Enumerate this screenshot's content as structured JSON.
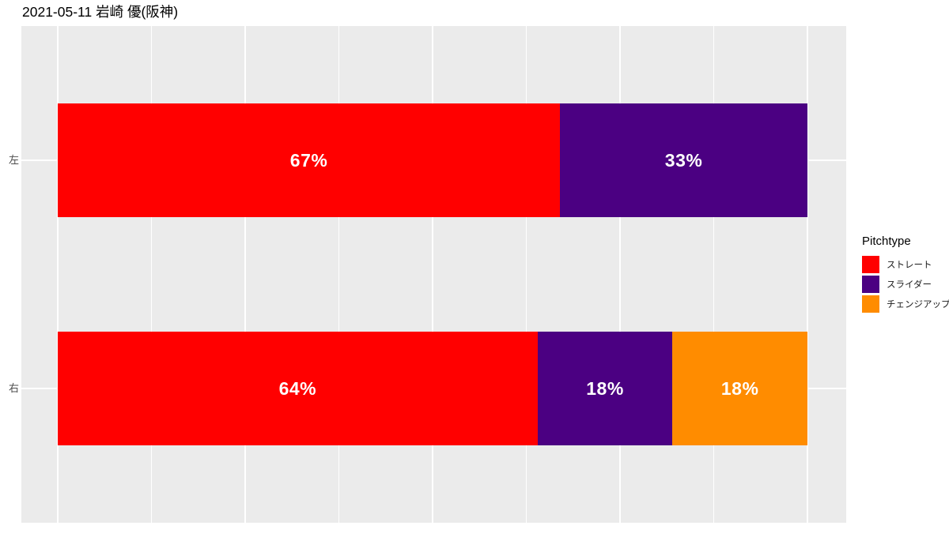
{
  "chart_data": {
    "type": "bar",
    "orientation": "horizontal",
    "stacked": true,
    "title": "2021-05-11 岩崎 優(阪神)",
    "categories": [
      "左",
      "右"
    ],
    "series": [
      {
        "name": "ストレート",
        "color": "#FF0000",
        "values": [
          67,
          64
        ]
      },
      {
        "name": "スライダー",
        "color": "#4B0082",
        "values": [
          33,
          18
        ]
      },
      {
        "name": "チェンジアップ",
        "color": "#FF8C00",
        "values": [
          0,
          18
        ]
      }
    ],
    "value_labels": [
      [
        "67%",
        "33%",
        ""
      ],
      [
        "64%",
        "18%",
        "18%"
      ]
    ],
    "legend_title": "Pitchtype",
    "legend_position": "right",
    "xlim": [
      0,
      100
    ],
    "x_axis_tick_labels_visible": false,
    "grid": true,
    "major_grid_percents": [
      0,
      25,
      50,
      75,
      100
    ],
    "minor_grid_percents": [
      12.5,
      37.5,
      62.5,
      87.5
    ],
    "panel_bg": "#EBEBEB",
    "grid_color": "#FFFFFF",
    "axis_text_color": "#4D4D4D",
    "bar_label_color": "#FFFFFF"
  }
}
